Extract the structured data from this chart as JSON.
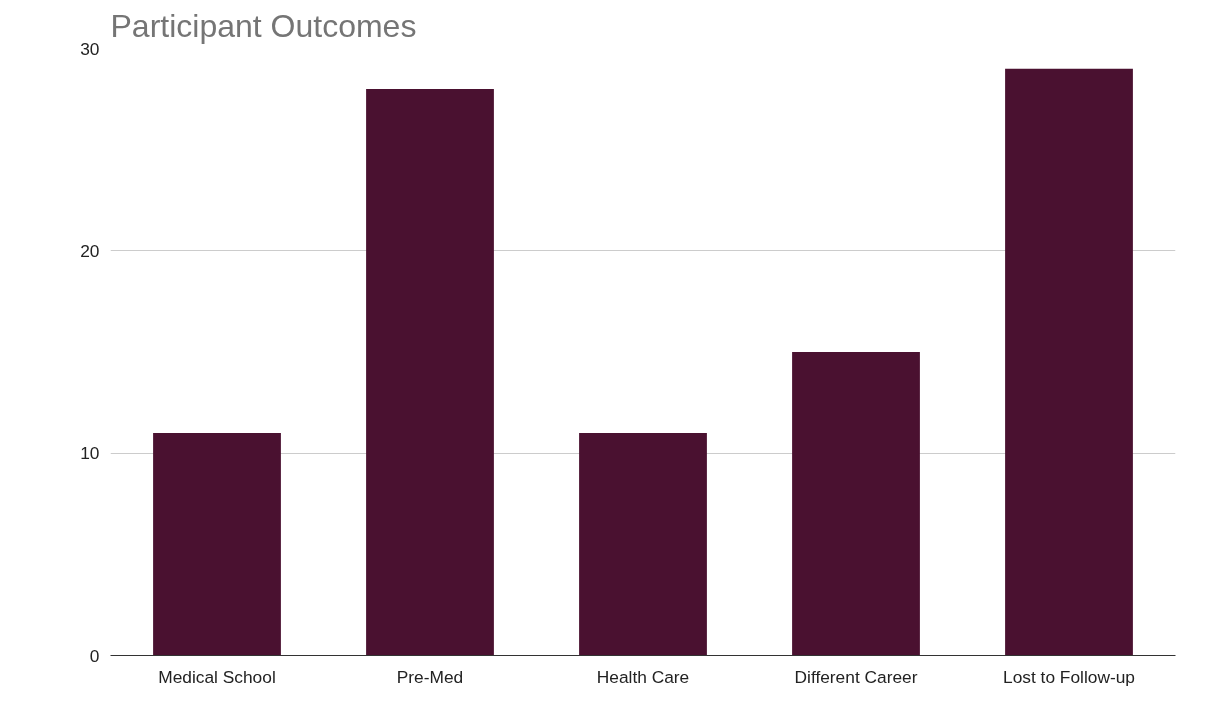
{
  "chart_data": {
    "type": "bar",
    "title": "Participant Outcomes",
    "categories": [
      "Medical School",
      "Pre-Med",
      "Health Care",
      "Different Career",
      "Lost to Follow-up"
    ],
    "values": [
      11,
      28,
      11,
      15,
      29
    ],
    "color": "#4a1130",
    "ylim": [
      0,
      30
    ],
    "yticks": [
      0,
      10,
      20,
      30
    ],
    "grid": "y"
  }
}
